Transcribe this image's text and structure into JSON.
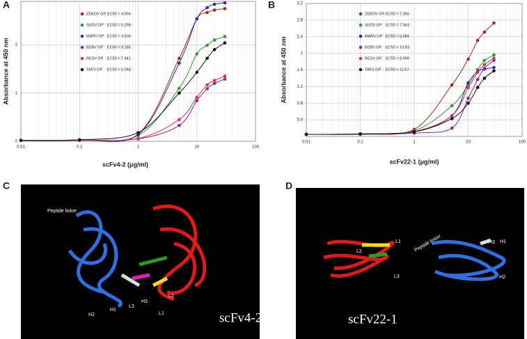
{
  "chart_data": [
    {
      "type": "line",
      "panel": "A",
      "x_label": "scFv4-2 (μg/ml)",
      "y_label": "Absorbance at 450 nm",
      "log_x": true,
      "grid": true,
      "xlim": [
        0.01,
        100
      ],
      "xticks": [
        0.01,
        0.1,
        1,
        10,
        100
      ],
      "ylim": [
        0,
        2.9
      ],
      "yticks": [
        0,
        1,
        2
      ],
      "x": [
        0.01,
        0.1,
        1,
        5,
        10,
        15,
        20,
        30
      ],
      "series": [
        {
          "name": "ZEBOV GP",
          "ec50": "EC50 = 4.094",
          "color": "#a02a1e",
          "values": [
            0.02,
            0.03,
            0.15,
            1.72,
            2.54,
            2.67,
            2.72,
            2.75
          ]
        },
        {
          "name": "SUDV GP",
          "ec50": "EC50 = 5.298",
          "color": "#2e9a2e",
          "values": [
            0.02,
            0.03,
            0.12,
            1.1,
            1.81,
            1.99,
            2.1,
            2.17
          ]
        },
        {
          "name": "MARV GP",
          "ec50": "EC50 = 4.506",
          "color": "#2a2ab0",
          "values": [
            0.02,
            0.03,
            0.14,
            1.62,
            2.54,
            2.77,
            2.84,
            2.87
          ]
        },
        {
          "name": "BDBV GP",
          "ec50": "EC50 = 8.185",
          "color": "#8a2a9a",
          "values": [
            0.02,
            0.02,
            0.05,
            0.33,
            0.84,
            1.09,
            1.2,
            1.29
          ]
        },
        {
          "name": "RESV GP",
          "ec50": "EC50 = 7.441",
          "color": "#e0304a",
          "values": [
            0.02,
            0.02,
            0.06,
            0.45,
            0.91,
            1.17,
            1.26,
            1.35
          ]
        },
        {
          "name": "TAFV GP",
          "ec50": "EC50 = 6.948",
          "color": "#111111",
          "values": [
            0.02,
            0.03,
            0.18,
            1.0,
            1.43,
            1.72,
            1.9,
            2.04
          ]
        }
      ]
    },
    {
      "type": "line",
      "panel": "B",
      "x_label": "scFv22-1 (μg/ml)",
      "y_label": "Absorbance at 450 nm",
      "log_x": true,
      "grid": true,
      "xlim": [
        0.01,
        100
      ],
      "xticks": [
        0.01,
        0.1,
        1,
        10,
        100
      ],
      "ylim": [
        0,
        3.2
      ],
      "yticks": [
        0.4,
        0.8,
        1.2,
        1.6,
        2,
        2.4,
        2.8,
        3.2
      ],
      "x": [
        0.01,
        0.1,
        1,
        5,
        10,
        15,
        20,
        30
      ],
      "series": [
        {
          "name": "ZEBOV GP",
          "ec50": "EC50 = 7.356",
          "color": "#a02a1e",
          "values": [
            0.05,
            0.06,
            0.17,
            1.24,
            1.86,
            2.31,
            2.51,
            2.73
          ]
        },
        {
          "name": "SUDV GP",
          "ec50": "EC50 = 7.943",
          "color": "#2e9a2e",
          "values": [
            0.05,
            0.06,
            0.14,
            0.74,
            1.24,
            1.61,
            1.83,
            1.96
          ]
        },
        {
          "name": "MARV GP",
          "ec50": "EC50 = 6.584",
          "color": "#2a2ab0",
          "values": [
            0.05,
            0.06,
            0.12,
            0.5,
            1.29,
            1.56,
            1.62,
            1.66
          ]
        },
        {
          "name": "BDBV GP",
          "ec50": "EC50 = 10.83",
          "color": "#8a2a9a",
          "values": [
            0.05,
            0.05,
            0.08,
            0.2,
            0.92,
            1.37,
            1.64,
            1.83
          ]
        },
        {
          "name": "RESV GP",
          "ec50": "EC50 = 8.999",
          "color": "#e0304a",
          "values": [
            0.05,
            0.06,
            0.12,
            0.5,
            1.17,
            1.54,
            1.73,
            1.88
          ]
        },
        {
          "name": "TAFV GP",
          "ec50": "EC50 = 11.57",
          "color": "#111111",
          "values": [
            0.05,
            0.06,
            0.11,
            0.43,
            0.8,
            1.18,
            1.4,
            1.58
          ]
        }
      ]
    }
  ],
  "structures": [
    {
      "panel": "C",
      "name": "scFv4-2",
      "labels": [
        "Peptide linker",
        "H2",
        "H1",
        "L3",
        "H3",
        "L2",
        "L1"
      ]
    },
    {
      "panel": "D",
      "name": "scFv22-1",
      "labels": [
        "L2",
        "L1",
        "Peptide linker",
        "L3",
        "H3",
        "H1",
        "H2"
      ]
    }
  ]
}
